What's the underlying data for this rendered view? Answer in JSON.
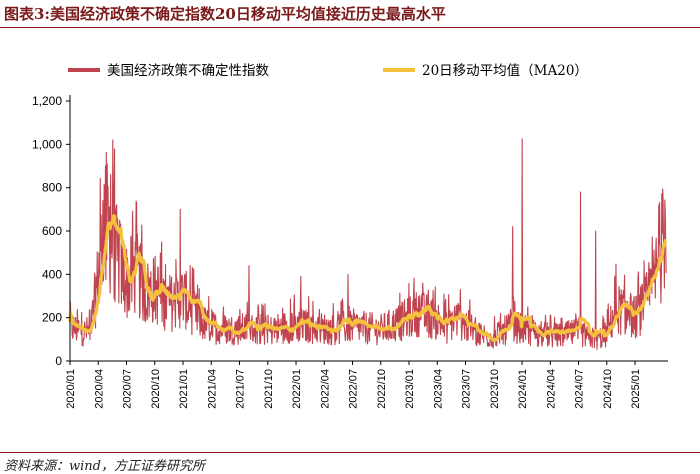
{
  "header": {
    "title": "图表3:美国经济政策不确定指数20日移动平均值接近历史最高水平"
  },
  "footer": {
    "source": "资料来源：wind，方正证券研究所"
  },
  "chart_data": {
    "type": "line",
    "title": "美国经济政策不确定指数20日移动平均值接近历史最高水平",
    "xlabel": "",
    "ylabel": "",
    "ylim": [
      0,
      1200
    ],
    "yticks": [
      "0",
      "200",
      "400",
      "600",
      "800",
      "1,000",
      "1,200"
    ],
    "ytick_values": [
      0,
      200,
      400,
      600,
      800,
      1000,
      1200
    ],
    "x_range": [
      "2020/01",
      "2025/04"
    ],
    "xticks": [
      "2020/01",
      "2020/04",
      "2020/07",
      "2020/10",
      "2021/01",
      "2021/04",
      "2021/07",
      "2021/10",
      "2022/01",
      "2022/04",
      "2022/07",
      "2022/10",
      "2023/01",
      "2023/04",
      "2023/07",
      "2023/10",
      "2024/01",
      "2024/04",
      "2024/07",
      "2024/10",
      "2025/01"
    ],
    "grid": false,
    "legend_position": "top",
    "series": [
      {
        "name": "美国经济政策不确定性指数",
        "color": "#c0444f",
        "style": "daily",
        "anchors": [
          {
            "t": 0,
            "v": 140
          },
          {
            "t": 1.5,
            "v": 120
          },
          {
            "t": 2.2,
            "v": 130
          },
          {
            "t": 3.0,
            "v": 350
          },
          {
            "t": 3.6,
            "v": 580
          },
          {
            "t": 4.2,
            "v": 540
          },
          {
            "t": 5.0,
            "v": 430
          },
          {
            "t": 6.0,
            "v": 330
          },
          {
            "t": 7.0,
            "v": 370
          },
          {
            "t": 8.0,
            "v": 280
          },
          {
            "t": 9.0,
            "v": 300
          },
          {
            "t": 10.0,
            "v": 250
          },
          {
            "t": 11.0,
            "v": 240
          },
          {
            "t": 12.0,
            "v": 270
          },
          {
            "t": 13.0,
            "v": 210
          },
          {
            "t": 14.0,
            "v": 160
          },
          {
            "t": 15.0,
            "v": 140
          },
          {
            "t": 17.0,
            "v": 130
          },
          {
            "t": 19.0,
            "v": 135
          },
          {
            "t": 21.0,
            "v": 125
          },
          {
            "t": 24.0,
            "v": 150
          },
          {
            "t": 26.0,
            "v": 140
          },
          {
            "t": 28.0,
            "v": 130
          },
          {
            "t": 30.0,
            "v": 145
          },
          {
            "t": 33.0,
            "v": 130
          },
          {
            "t": 35.0,
            "v": 160
          },
          {
            "t": 37.0,
            "v": 200
          },
          {
            "t": 39.0,
            "v": 170
          },
          {
            "t": 40.0,
            "v": 140
          },
          {
            "t": 41.0,
            "v": 180
          },
          {
            "t": 42.0,
            "v": 150
          },
          {
            "t": 43.5,
            "v": 110
          },
          {
            "t": 45.0,
            "v": 100
          },
          {
            "t": 46.0,
            "v": 120
          },
          {
            "t": 47.0,
            "v": 150
          },
          {
            "t": 48.0,
            "v": 130
          },
          {
            "t": 50.0,
            "v": 110
          },
          {
            "t": 52.0,
            "v": 105
          },
          {
            "t": 54.0,
            "v": 120
          },
          {
            "t": 55.0,
            "v": 100
          },
          {
            "t": 56.0,
            "v": 90
          },
          {
            "t": 57.0,
            "v": 110
          },
          {
            "t": 58.0,
            "v": 220
          },
          {
            "t": 59.0,
            "v": 200
          },
          {
            "t": 60.0,
            "v": 180
          },
          {
            "t": 61.0,
            "v": 230
          },
          {
            "t": 62.0,
            "v": 320
          },
          {
            "t": 62.8,
            "v": 470
          },
          {
            "t": 63.2,
            "v": 550
          }
        ],
        "spikes": [
          {
            "t": 3.5,
            "v": 740
          },
          {
            "t": 4.3,
            "v": 860
          },
          {
            "t": 4.6,
            "v": 830
          },
          {
            "t": 5.3,
            "v": 650
          },
          {
            "t": 7.0,
            "v": 510
          },
          {
            "t": 11.7,
            "v": 700
          },
          {
            "t": 19.0,
            "v": 440
          },
          {
            "t": 24.5,
            "v": 390
          },
          {
            "t": 29.5,
            "v": 400
          },
          {
            "t": 36.5,
            "v": 330
          },
          {
            "t": 47.0,
            "v": 620
          },
          {
            "t": 48.0,
            "v": 1025
          },
          {
            "t": 54.2,
            "v": 780
          },
          {
            "t": 55.8,
            "v": 600
          },
          {
            "t": 62.5,
            "v": 720
          },
          {
            "t": 63.0,
            "v": 750
          }
        ]
      },
      {
        "name": "20日移动平均值（MA20）",
        "color": "#f5c13d",
        "style": "ma20"
      }
    ]
  }
}
